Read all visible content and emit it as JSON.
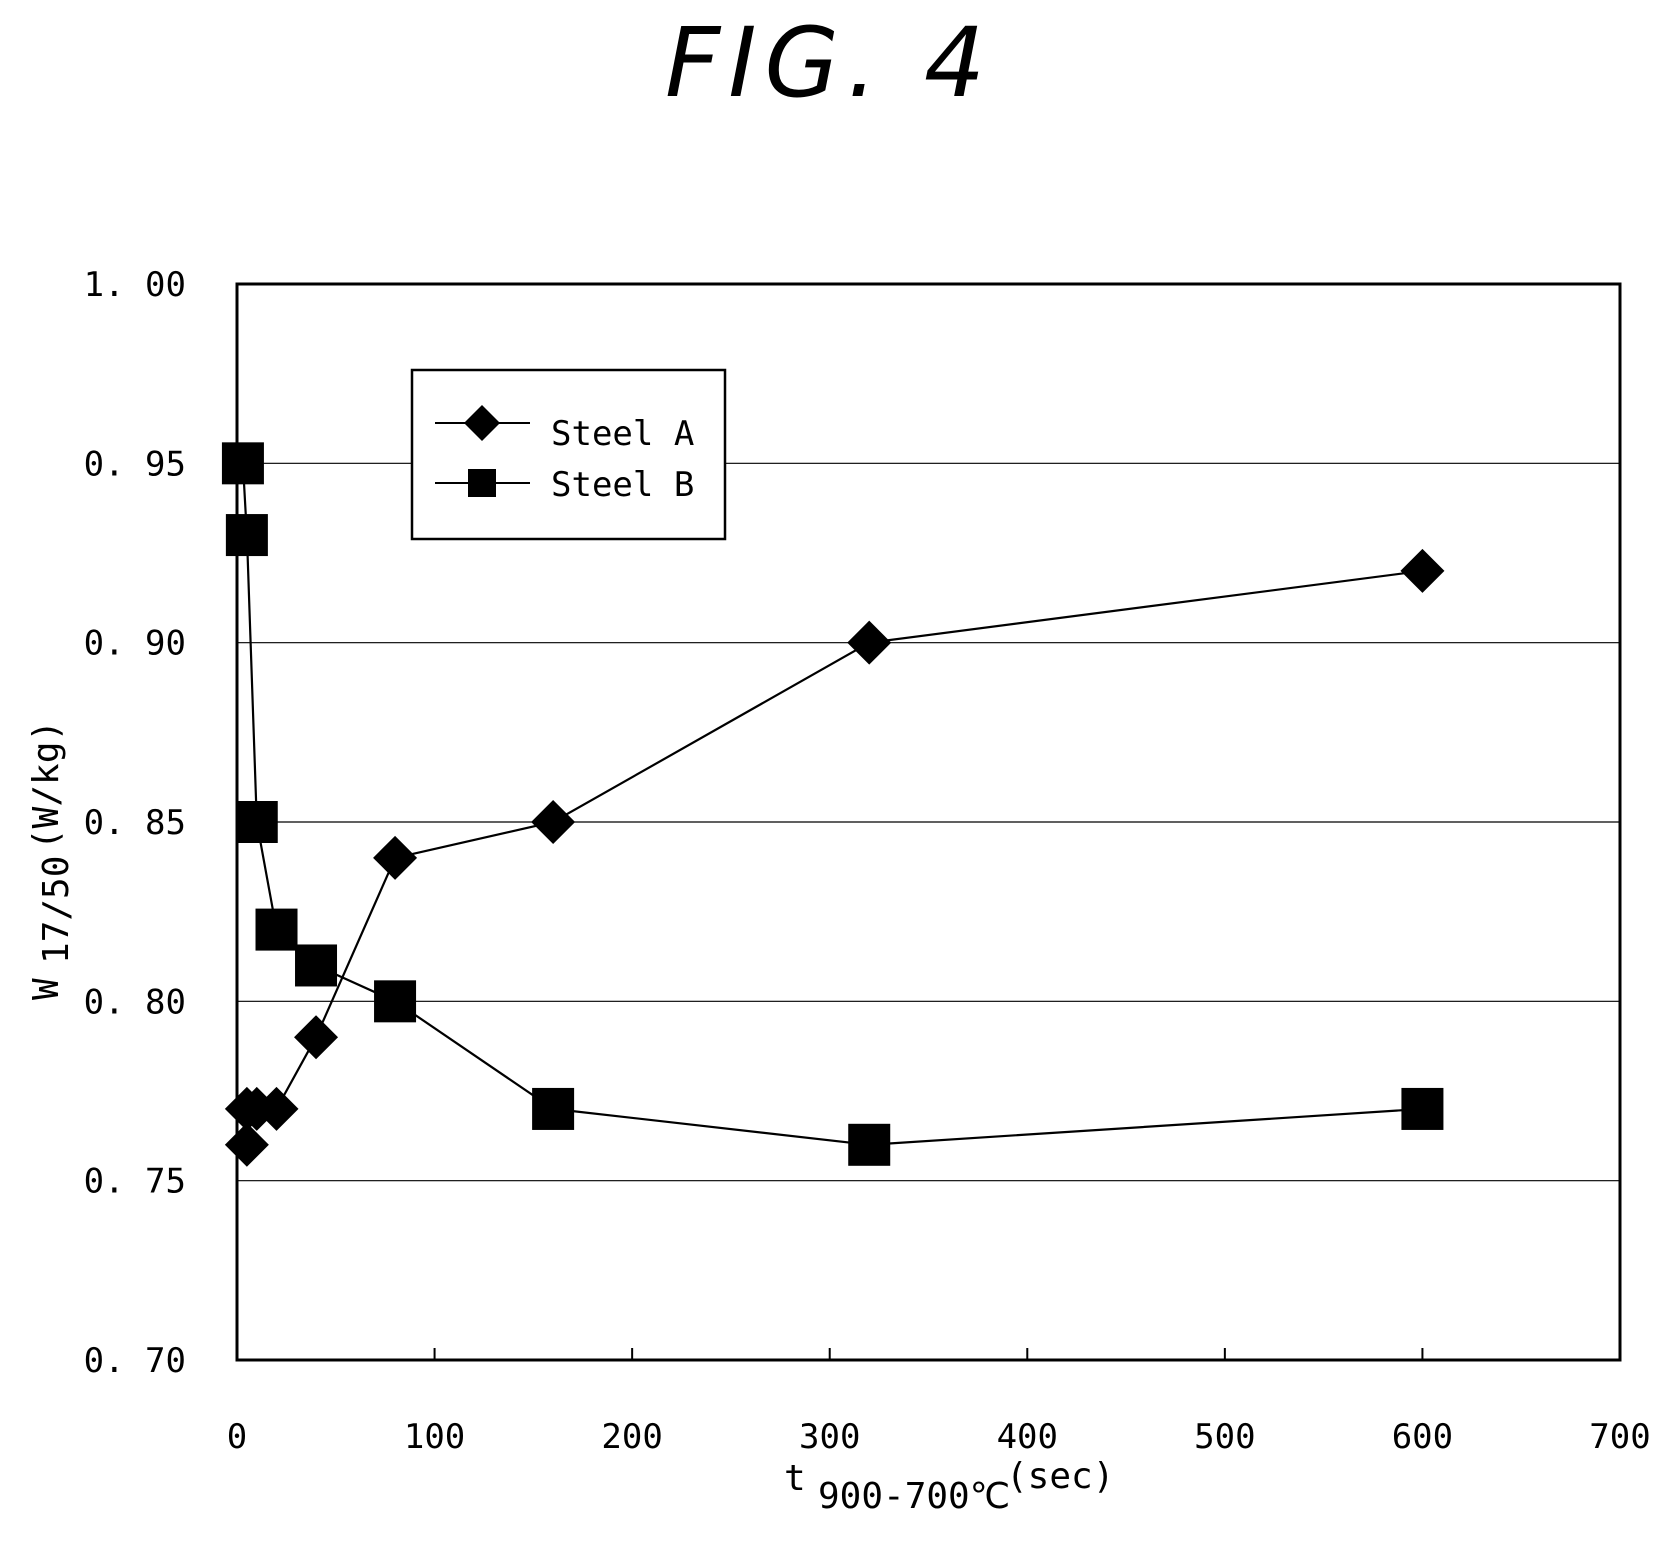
{
  "figure_label": "FIG. 4",
  "chart_data": {
    "type": "line",
    "x_ticks": [
      "0",
      "100",
      "200",
      "300",
      "400",
      "500",
      "600",
      "700"
    ],
    "y_ticks": [
      "0. 70",
      "0. 75",
      "0. 80",
      "0. 85",
      "0. 90",
      "0. 95",
      "1. 00"
    ],
    "xlim": [
      0,
      700
    ],
    "ylim": [
      0.7,
      1.0
    ],
    "xlabel_main": "t",
    "xlabel_sub": "900-700℃",
    "xlabel_unit": "(sec)",
    "ylabel_main": "W",
    "ylabel_sub": "17/50",
    "ylabel_unit": "(W/kg)",
    "grid": "horizontal",
    "legend_position": "top-left",
    "series": [
      {
        "name": "Steel A",
        "marker": "diamond",
        "points": [
          [
            5,
            0.76
          ],
          [
            5,
            0.77
          ],
          [
            10,
            0.77
          ],
          [
            20,
            0.77
          ],
          [
            40,
            0.79
          ],
          [
            80,
            0.84
          ],
          [
            160,
            0.85
          ],
          [
            320,
            0.9
          ],
          [
            600,
            0.92
          ]
        ]
      },
      {
        "name": "Steel B",
        "marker": "square",
        "points": [
          [
            3,
            0.95
          ],
          [
            5,
            0.93
          ],
          [
            10,
            0.85
          ],
          [
            20,
            0.82
          ],
          [
            40,
            0.81
          ],
          [
            80,
            0.8
          ],
          [
            160,
            0.77
          ],
          [
            320,
            0.76
          ],
          [
            600,
            0.77
          ]
        ]
      }
    ]
  }
}
